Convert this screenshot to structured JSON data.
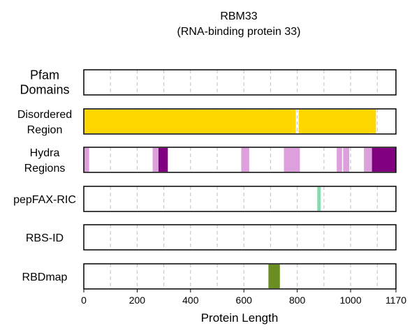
{
  "chart_data": {
    "type": "bar",
    "title": "RBM33",
    "subtitle": "(RNA-binding protein 33)",
    "xlabel": "Protein Length",
    "xlim": [
      0,
      1170
    ],
    "xticks": [
      0,
      200,
      400,
      600,
      800,
      1000,
      1170
    ],
    "grid": {
      "x_dashed": true,
      "interval": 100
    },
    "tracks": [
      {
        "label_lines": [
          "Pfam",
          "Domains"
        ],
        "segments": []
      },
      {
        "label_lines": [
          "Disordered",
          "Region"
        ],
        "segments": [
          {
            "start": 0,
            "end": 795,
            "color": "#FFD700"
          },
          {
            "start": 805,
            "end": 1095,
            "color": "#FFD700"
          }
        ]
      },
      {
        "label_lines": [
          "Hydra",
          "Regions"
        ],
        "segments": [
          {
            "start": 0,
            "end": 20,
            "color": "#DDA0DD"
          },
          {
            "start": 258,
            "end": 280,
            "color": "#DDA0DD"
          },
          {
            "start": 280,
            "end": 315,
            "color": "#800080"
          },
          {
            "start": 590,
            "end": 620,
            "color": "#DDA0DD"
          },
          {
            "start": 750,
            "end": 810,
            "color": "#DDA0DD"
          },
          {
            "start": 948,
            "end": 968,
            "color": "#DDA0DD"
          },
          {
            "start": 972,
            "end": 995,
            "color": "#DDA0DD"
          },
          {
            "start": 1050,
            "end": 1080,
            "color": "#DDA0DD"
          },
          {
            "start": 1080,
            "end": 1170,
            "color": "#800080"
          }
        ]
      },
      {
        "label_lines": [
          "pepFAX-RIC"
        ],
        "segments": [
          {
            "start": 875,
            "end": 888,
            "color": "#88D8B0"
          }
        ]
      },
      {
        "label_lines": [
          "RBS-ID"
        ],
        "segments": []
      },
      {
        "label_lines": [
          "RBDmap"
        ],
        "segments": [
          {
            "start": 692,
            "end": 735,
            "color": "#6B8E23"
          }
        ]
      }
    ]
  }
}
